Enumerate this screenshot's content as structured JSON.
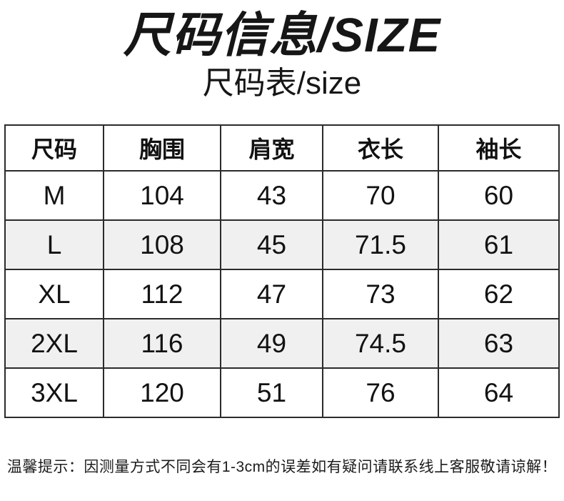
{
  "header": {
    "title": "尺码信息/SIZE",
    "subtitle": "尺码表/size"
  },
  "table": {
    "columns": [
      "尺码",
      "胸围",
      "肩宽",
      "衣长",
      "袖长"
    ],
    "rows": [
      [
        "M",
        "104",
        "43",
        "70",
        "60"
      ],
      [
        "L",
        "108",
        "45",
        "71.5",
        "61"
      ],
      [
        "XL",
        "112",
        "47",
        "73",
        "62"
      ],
      [
        "2XL",
        "116",
        "49",
        "74.5",
        "63"
      ],
      [
        "3XL",
        "120",
        "51",
        "76",
        "64"
      ]
    ]
  },
  "footer": {
    "note": "温馨提示：因测量方式不同会有1-3cm的误差如有疑问请联系线上客服敬请谅解！"
  },
  "colors": {
    "background": "#ffffff",
    "text": "#111111",
    "table_border": "#2b2b2b",
    "row_alt_background": "#f0f0f0"
  }
}
